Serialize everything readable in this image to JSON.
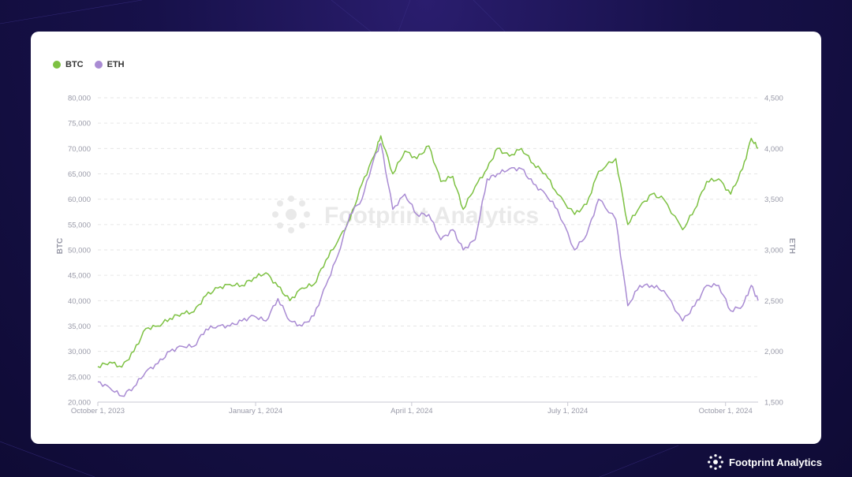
{
  "brand": {
    "name": "Footprint Analytics"
  },
  "watermark": "Footprint Analytics",
  "colors": {
    "btc": "#7dc142",
    "eth": "#a98bd3",
    "grid": "#e6e6e6",
    "tick": "#999aa8"
  },
  "chart_data": {
    "type": "line",
    "legend": [
      "BTC",
      "ETH"
    ],
    "legend_position": "top-left",
    "grid": true,
    "ylabel_left": "BTC",
    "ylabel_right": "ETH",
    "x_ticks": [
      "October 1, 2023",
      "January 1, 2024",
      "April 1, 2024",
      "July 1, 2024",
      "October 1, 2024"
    ],
    "y_left_ticks": [
      "20,000",
      "25,000",
      "30,000",
      "35,000",
      "40,000",
      "45,000",
      "50,000",
      "55,000",
      "60,000",
      "65,000",
      "70,000",
      "75,000",
      "80,000"
    ],
    "y_right_ticks": [
      "1,500",
      "2,000",
      "2,500",
      "3,000",
      "3,500",
      "4,000",
      "4,500"
    ],
    "ylim_left": [
      20000,
      80000
    ],
    "ylim_right": [
      1500,
      4500
    ],
    "xlim": [
      "2023-10-01",
      "2024-10-20"
    ],
    "series": [
      {
        "name": "BTC",
        "axis": "left",
        "x": [
          "2023-10-01",
          "2023-10-08",
          "2023-10-15",
          "2023-10-22",
          "2023-10-29",
          "2023-11-05",
          "2023-11-12",
          "2023-11-19",
          "2023-11-26",
          "2023-12-03",
          "2023-12-10",
          "2023-12-17",
          "2023-12-24",
          "2023-12-31",
          "2024-01-07",
          "2024-01-14",
          "2024-01-21",
          "2024-01-28",
          "2024-02-04",
          "2024-02-11",
          "2024-02-18",
          "2024-02-25",
          "2024-03-03",
          "2024-03-10",
          "2024-03-14",
          "2024-03-21",
          "2024-03-28",
          "2024-04-04",
          "2024-04-11",
          "2024-04-18",
          "2024-04-25",
          "2024-05-01",
          "2024-05-08",
          "2024-05-15",
          "2024-05-21",
          "2024-05-28",
          "2024-06-04",
          "2024-06-11",
          "2024-06-18",
          "2024-06-25",
          "2024-07-05",
          "2024-07-12",
          "2024-07-19",
          "2024-07-29",
          "2024-08-05",
          "2024-08-12",
          "2024-08-19",
          "2024-08-26",
          "2024-09-06",
          "2024-09-13",
          "2024-09-20",
          "2024-09-27",
          "2024-10-04",
          "2024-10-11",
          "2024-10-16",
          "2024-10-20"
        ],
        "values": [
          27000,
          27900,
          26900,
          30000,
          34500,
          35000,
          36500,
          37500,
          37800,
          41000,
          42500,
          43200,
          43000,
          44500,
          45500,
          42800,
          40000,
          42500,
          43200,
          48000,
          51800,
          56000,
          63000,
          68500,
          72500,
          65000,
          69500,
          68000,
          70500,
          63500,
          64500,
          58000,
          62500,
          66000,
          70000,
          68500,
          70000,
          67000,
          65000,
          61000,
          57000,
          59000,
          65500,
          68000,
          55000,
          58500,
          61000,
          60000,
          54000,
          58000,
          63500,
          64000,
          61000,
          66000,
          72000,
          70000
        ]
      },
      {
        "name": "ETH",
        "axis": "right",
        "x": [
          "2023-10-01",
          "2023-10-08",
          "2023-10-15",
          "2023-10-22",
          "2023-10-29",
          "2023-11-05",
          "2023-11-12",
          "2023-11-19",
          "2023-11-26",
          "2023-12-03",
          "2023-12-10",
          "2023-12-17",
          "2023-12-24",
          "2023-12-31",
          "2024-01-07",
          "2024-01-14",
          "2024-01-21",
          "2024-01-28",
          "2024-02-04",
          "2024-02-11",
          "2024-02-18",
          "2024-02-25",
          "2024-03-03",
          "2024-03-10",
          "2024-03-14",
          "2024-03-21",
          "2024-03-28",
          "2024-04-04",
          "2024-04-11",
          "2024-04-18",
          "2024-04-25",
          "2024-05-01",
          "2024-05-08",
          "2024-05-15",
          "2024-05-21",
          "2024-05-28",
          "2024-06-04",
          "2024-06-11",
          "2024-06-18",
          "2024-06-25",
          "2024-07-05",
          "2024-07-12",
          "2024-07-19",
          "2024-07-29",
          "2024-08-05",
          "2024-08-12",
          "2024-08-19",
          "2024-08-26",
          "2024-09-06",
          "2024-09-13",
          "2024-09-20",
          "2024-09-27",
          "2024-10-04",
          "2024-10-11",
          "2024-10-16",
          "2024-10-20"
        ],
        "values": [
          1700,
          1640,
          1560,
          1650,
          1800,
          1880,
          2000,
          2050,
          2050,
          2220,
          2250,
          2250,
          2300,
          2350,
          2300,
          2520,
          2300,
          2250,
          2350,
          2650,
          2950,
          3350,
          3500,
          3900,
          4050,
          3400,
          3550,
          3350,
          3350,
          3100,
          3200,
          3000,
          3100,
          3700,
          3750,
          3800,
          3800,
          3650,
          3550,
          3400,
          3000,
          3150,
          3500,
          3300,
          2450,
          2650,
          2650,
          2600,
          2300,
          2450,
          2650,
          2650,
          2400,
          2450,
          2650,
          2500
        ]
      }
    ]
  }
}
